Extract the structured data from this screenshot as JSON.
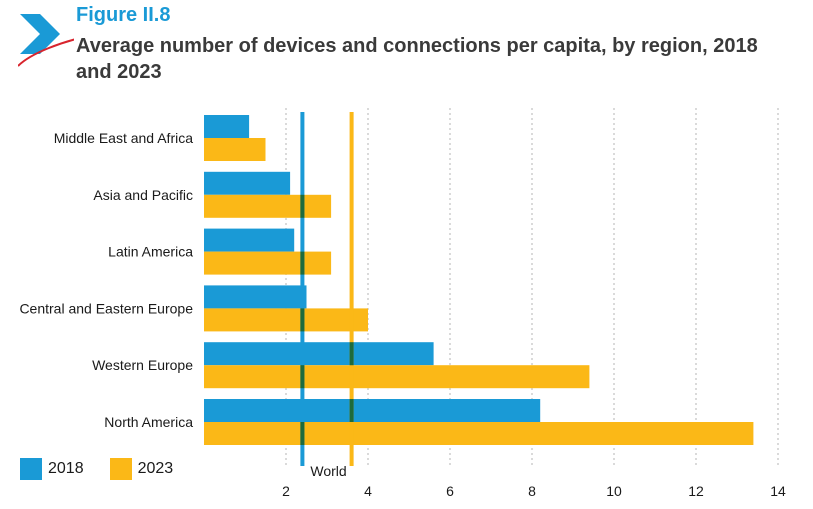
{
  "header": {
    "figure_number": "Figure II.8",
    "title": "Average number of devices and connections per capita, by region, 2018 and 2023"
  },
  "colors": {
    "series_2018": "#1a9ad6",
    "series_2023": "#fbb817",
    "overlap": "#1e6b3c",
    "brand_accent": "#1a9ad6"
  },
  "chart_data": {
    "type": "bar",
    "orientation": "horizontal",
    "categories": [
      "Middle East and Africa",
      "Asia and Pacific",
      "Latin America",
      "Central and Eastern Europe",
      "Western Europe",
      "North America"
    ],
    "series": [
      {
        "name": "2018",
        "values": [
          1.1,
          2.1,
          2.2,
          2.5,
          5.6,
          8.2
        ]
      },
      {
        "name": "2023",
        "values": [
          1.5,
          3.1,
          3.1,
          4.0,
          9.4,
          13.4
        ]
      }
    ],
    "reference_lines": [
      {
        "label": "World",
        "series": "2018",
        "value": 2.4
      },
      {
        "series": "2023",
        "value": 3.6
      }
    ],
    "xticks": [
      2,
      4,
      6,
      8,
      10,
      12,
      14
    ],
    "xlim": [
      0,
      14
    ],
    "grid": "vertical-dotted",
    "legend_position": "bottom-left"
  },
  "legend": {
    "items": [
      {
        "label": "2018",
        "color": "#1a9ad6"
      },
      {
        "label": "2023",
        "color": "#fbb817"
      }
    ]
  }
}
